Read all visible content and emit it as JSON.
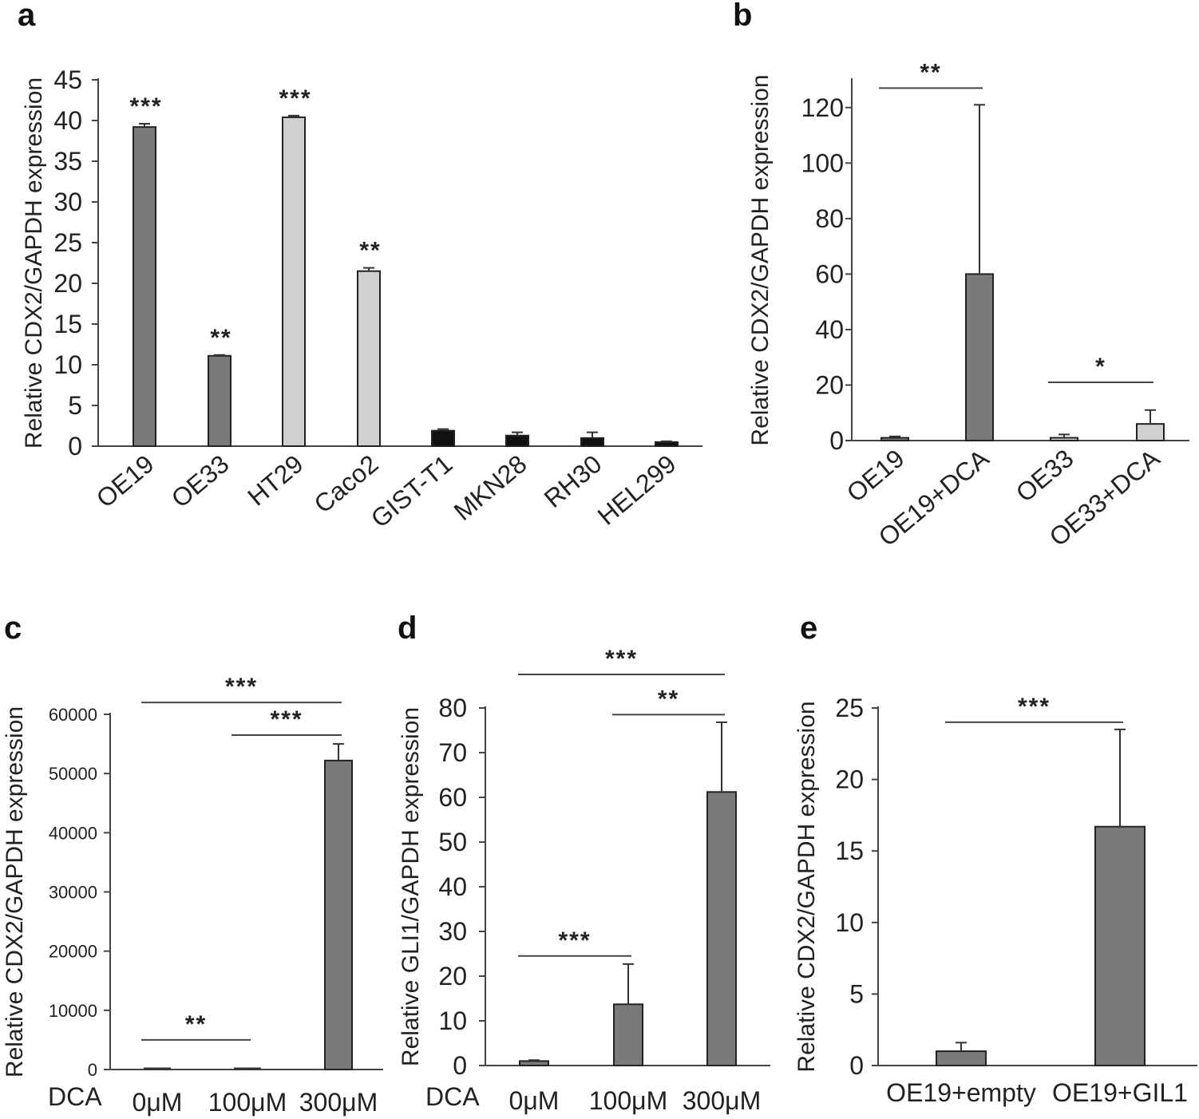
{
  "colors": {
    "dark_gray": "#7a7a7a",
    "light_gray": "#d0d0d0",
    "black": "#111111"
  },
  "chart_data": [
    {
      "panel": "a",
      "type": "bar",
      "ylabel": "Relative CDX2/GAPDH expression",
      "ylim": [
        0,
        45
      ],
      "yticks": [
        0,
        5,
        10,
        15,
        20,
        25,
        30,
        35,
        40,
        45
      ],
      "categories": [
        "OE19",
        "OE33",
        "HT29",
        "Caco2",
        "GIST-T1",
        "MKN28",
        "RH30",
        "HEL299"
      ],
      "values": [
        39.2,
        11.1,
        40.4,
        21.5,
        1.9,
        1.3,
        1.0,
        0.5
      ],
      "errors": [
        0.4,
        0.1,
        0.2,
        0.4,
        0.2,
        0.4,
        0.7,
        0.1
      ],
      "bar_colors": [
        "dark_gray",
        "dark_gray",
        "light_gray",
        "light_gray",
        "black",
        "black",
        "black",
        "black"
      ],
      "significance": [
        {
          "category_index": 0,
          "label": "***"
        },
        {
          "category_index": 1,
          "label": "**"
        },
        {
          "category_index": 2,
          "label": "***"
        },
        {
          "category_index": 3,
          "label": "**"
        }
      ],
      "brackets": []
    },
    {
      "panel": "b",
      "type": "bar",
      "ylabel": "Relative CDX2/GAPDH expression",
      "ylim": [
        0,
        130
      ],
      "yticks": [
        0,
        20,
        40,
        60,
        80,
        100,
        120
      ],
      "categories": [
        "OE19",
        "OE19+DCA",
        "OE33",
        "OE33+DCA"
      ],
      "values": [
        1,
        60,
        1,
        6
      ],
      "errors": [
        0.5,
        61,
        1.2,
        5
      ],
      "bar_colors": [
        "dark_gray",
        "dark_gray",
        "light_gray",
        "light_gray"
      ],
      "significance": [],
      "brackets": [
        {
          "from": 0,
          "to": 1,
          "y": 127,
          "label": "**"
        },
        {
          "from": 2,
          "to": 3,
          "y": 21,
          "label": "*"
        }
      ]
    },
    {
      "panel": "c",
      "type": "bar",
      "ylabel": "Relative CDX2/GAPDH expression",
      "xgroup_label": "DCA",
      "ylim": [
        0,
        60000
      ],
      "yticks": [
        0,
        10000,
        20000,
        30000,
        40000,
        50000,
        60000
      ],
      "categories": [
        "0μM",
        "100μM",
        "300μM"
      ],
      "values": [
        0,
        0,
        52200
      ],
      "errors": [
        0,
        0,
        2800
      ],
      "bar_colors": [
        "dark_gray",
        "dark_gray",
        "dark_gray"
      ],
      "significance": [],
      "brackets": [
        {
          "from": 0,
          "to": 2,
          "y": 62000,
          "label": "***"
        },
        {
          "from": 1,
          "to": 2,
          "y": 56500,
          "label": "***"
        },
        {
          "from": 0,
          "to": 1,
          "y": 5000,
          "label": "**"
        }
      ]
    },
    {
      "panel": "d",
      "type": "bar",
      "ylabel": "Relative GLI1/GAPDH expression",
      "xgroup_label": "DCA",
      "ylim": [
        0,
        80
      ],
      "yticks": [
        0,
        10,
        20,
        30,
        40,
        50,
        60,
        70,
        80
      ],
      "categories": [
        "0μM",
        "100μM",
        "300μM"
      ],
      "values": [
        1,
        13.7,
        61.2
      ],
      "errors": [
        0.2,
        9,
        15.6
      ],
      "bar_colors": [
        "dark_gray",
        "dark_gray",
        "dark_gray"
      ],
      "significance": [],
      "brackets": [
        {
          "from": 0,
          "to": 2,
          "y": 87.5,
          "label": "***"
        },
        {
          "from": 1,
          "to": 2,
          "y": 78.5,
          "label": "**"
        },
        {
          "from": 0,
          "to": 1,
          "y": 24.5,
          "label": "***"
        }
      ]
    },
    {
      "panel": "e",
      "type": "bar",
      "ylabel": "Relative CDX2/GAPDH expression",
      "ylim": [
        0,
        25
      ],
      "yticks": [
        0,
        5,
        10,
        15,
        20,
        25
      ],
      "categories": [
        "OE19+empty",
        "OE19+GIL1"
      ],
      "values": [
        1,
        16.7
      ],
      "errors": [
        0.6,
        6.8
      ],
      "bar_colors": [
        "dark_gray",
        "dark_gray"
      ],
      "significance": [],
      "brackets": [
        {
          "from": 0,
          "to": 1,
          "y": 24,
          "label": "***"
        }
      ]
    }
  ]
}
